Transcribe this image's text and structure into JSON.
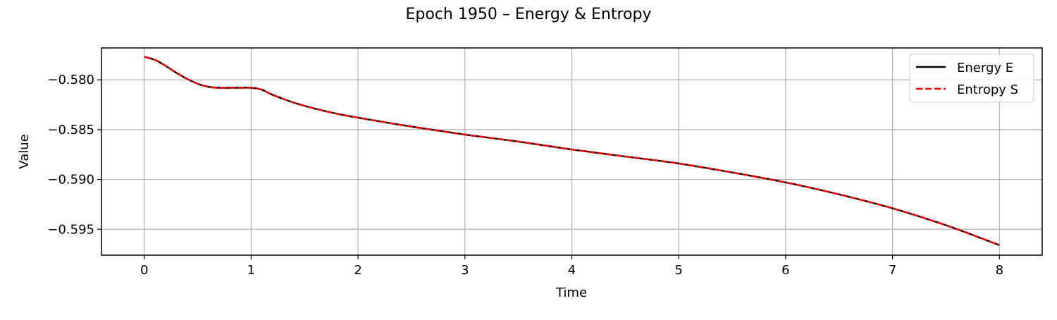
{
  "chart_data": {
    "type": "line",
    "title": "Epoch 1950 – Energy & Entropy",
    "xlabel": "Time",
    "ylabel": "Value",
    "xlim": [
      -0.4,
      8.4
    ],
    "ylim": [
      -0.5976,
      -0.5768
    ],
    "xticks": [
      0,
      1,
      2,
      3,
      4,
      5,
      6,
      7,
      8
    ],
    "xtick_labels": [
      "0",
      "1",
      "2",
      "3",
      "4",
      "5",
      "6",
      "7",
      "8"
    ],
    "yticks": [
      -0.58,
      -0.585,
      -0.59,
      -0.595
    ],
    "ytick_labels": [
      "−0.580",
      "−0.585",
      "−0.590",
      "−0.595"
    ],
    "grid": true,
    "legend_position": "top-right",
    "x": [
      0,
      0.1,
      0.2,
      0.3,
      0.4,
      0.5,
      0.6,
      0.7,
      0.8,
      0.9,
      1.0,
      1.1,
      1.2,
      1.4,
      1.6,
      1.8,
      2.0,
      2.5,
      3.0,
      3.5,
      4.0,
      4.5,
      5.0,
      5.5,
      6.0,
      6.5,
      7.0,
      7.5,
      8.0
    ],
    "series": [
      {
        "name": "Energy E",
        "color": "#000000",
        "style": "solid",
        "values": [
          -0.5777,
          -0.578,
          -0.5786,
          -0.5793,
          -0.5799,
          -0.5804,
          -0.5807,
          -0.5808,
          -0.5808,
          -0.5808,
          -0.5808,
          -0.581,
          -0.5815,
          -0.5823,
          -0.5829,
          -0.5834,
          -0.5838,
          -0.5847,
          -0.5855,
          -0.5862,
          -0.587,
          -0.5877,
          -0.5884,
          -0.5893,
          -0.5903,
          -0.5915,
          -0.5929,
          -0.5946,
          -0.5966
        ]
      },
      {
        "name": "Entropy S",
        "color": "#ff0000",
        "style": "dashed",
        "values": [
          -0.5777,
          -0.578,
          -0.5786,
          -0.5793,
          -0.5799,
          -0.5804,
          -0.5807,
          -0.5808,
          -0.5808,
          -0.5808,
          -0.5808,
          -0.581,
          -0.5815,
          -0.5823,
          -0.5829,
          -0.5834,
          -0.5838,
          -0.5847,
          -0.5855,
          -0.5862,
          -0.587,
          -0.5877,
          -0.5884,
          -0.5893,
          -0.5903,
          -0.5915,
          -0.5929,
          -0.5946,
          -0.5966
        ]
      }
    ]
  }
}
